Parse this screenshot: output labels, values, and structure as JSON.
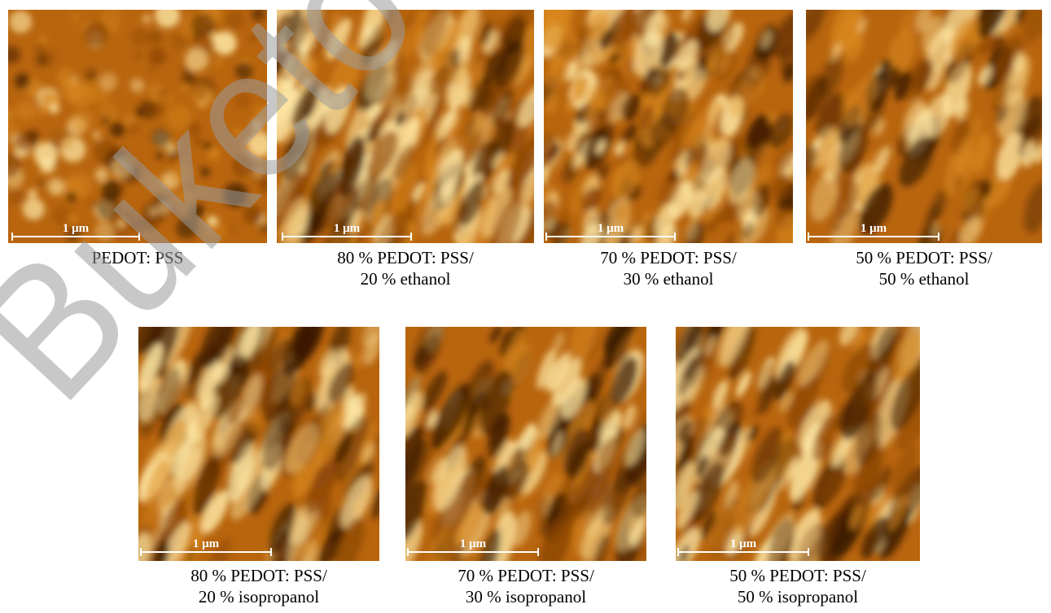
{
  "panels": [
    {
      "scale": "1 μm",
      "caption": [
        "PEDOT: PSS"
      ]
    },
    {
      "scale": "1 μm",
      "caption": [
        "80 % PEDOT: PSS/",
        "20 % ethanol"
      ]
    },
    {
      "scale": "1 μm",
      "caption": [
        "70 % PEDOT: PSS/",
        "30 % ethanol"
      ]
    },
    {
      "scale": "1 μm",
      "caption": [
        "50 % PEDOT: PSS/",
        "50 % ethanol"
      ]
    },
    {
      "scale": "1 μm",
      "caption": [
        "80 % PEDOT: PSS/",
        "20 % isopropanol"
      ]
    },
    {
      "scale": "1 μm",
      "caption": [
        "70 % PEDOT: PSS/",
        "30 % isopropanol"
      ]
    },
    {
      "scale": "1 μm",
      "caption": [
        "50 % PEDOT: PSS/",
        "50 % isopropanol"
      ]
    }
  ],
  "watermark": "Buketov",
  "colors": {
    "afm_dark": "#3a1a00",
    "afm_mid": "#b8650e",
    "afm_light": "#ffe9a6"
  }
}
